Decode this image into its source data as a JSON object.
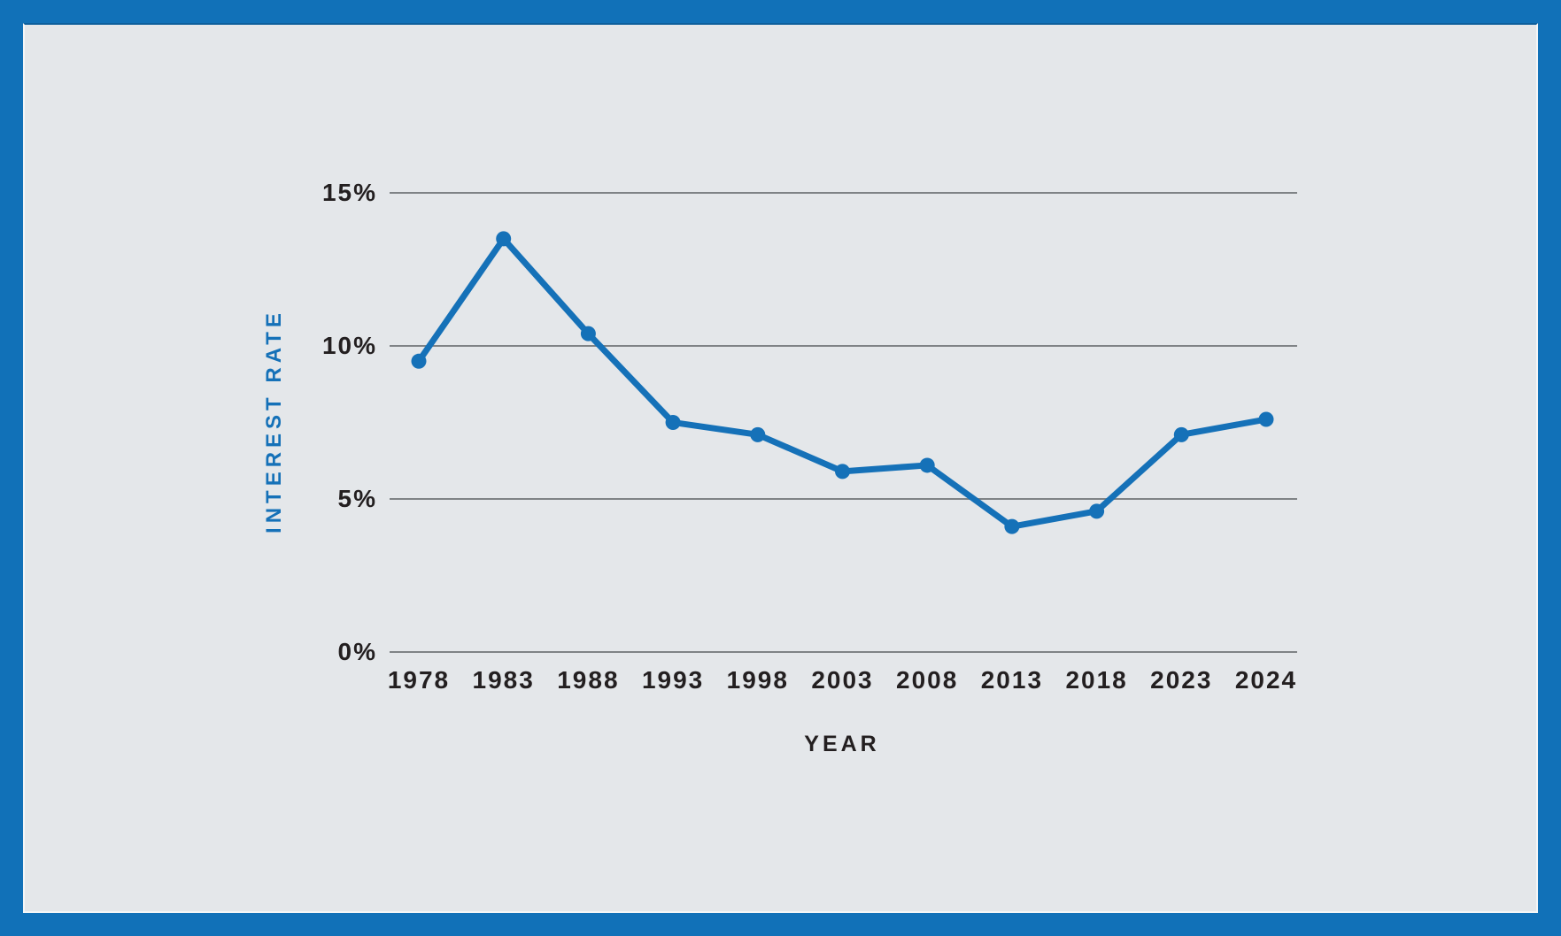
{
  "window": {
    "frame_color": "#1171b8",
    "panel_color": "#e4e7ea",
    "panel_edge_color": "#f4f6f7"
  },
  "chart_data": {
    "type": "line",
    "title": "",
    "xlabel": "YEAR",
    "ylabel": "INTEREST RATE",
    "categories": [
      "1978",
      "1983",
      "1988",
      "1993",
      "1998",
      "2003",
      "2008",
      "2013",
      "2018",
      "2023",
      "2024"
    ],
    "series": [
      {
        "name": "Interest rate (%)",
        "values": [
          9.5,
          13.5,
          10.4,
          7.5,
          7.1,
          5.9,
          6.1,
          4.1,
          4.6,
          7.1,
          7.6
        ]
      }
    ],
    "ylim": [
      0,
      15
    ],
    "yticks": [
      {
        "value": 15,
        "label": "15%"
      },
      {
        "value": 10,
        "label": "10%"
      },
      {
        "value": 5,
        "label": "5%"
      },
      {
        "value": 0,
        "label": "0%"
      }
    ],
    "grid": "horizontal-only",
    "legend": "none",
    "marker": "circle",
    "line_color": "#1571b8",
    "marker_color": "#1571b8",
    "grid_color": "#7f8386",
    "tick_text_color": "#231f20",
    "x_axis_title_color": "#231f20",
    "y_axis_title_color": "#1571b8"
  }
}
